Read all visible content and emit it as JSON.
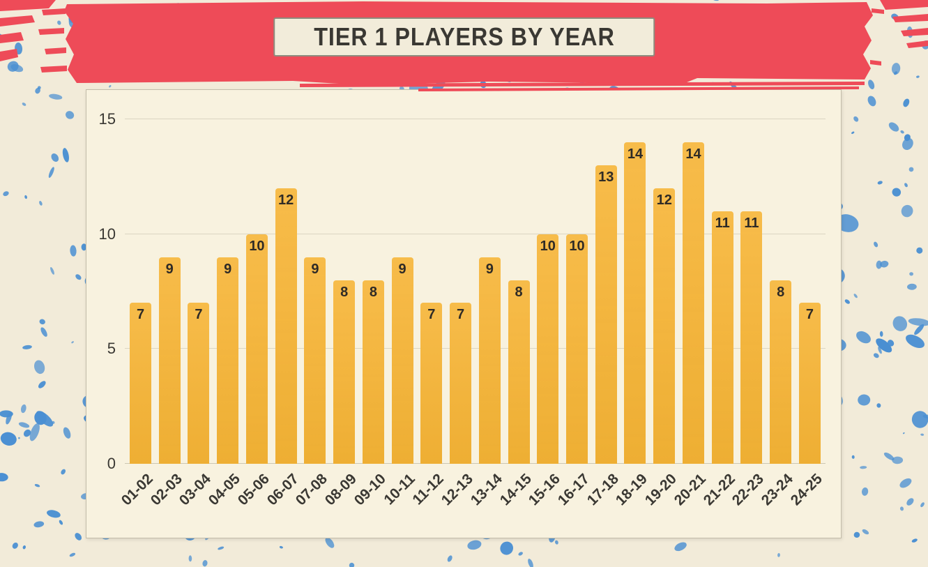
{
  "chart_data": {
    "type": "bar",
    "title": "TIER 1 PLAYERS BY YEAR",
    "categories": [
      "01-02",
      "02-03",
      "03-04",
      "04-05",
      "05-06",
      "06-07",
      "07-08",
      "08-09",
      "09-10",
      "10-11",
      "11-12",
      "12-13",
      "13-14",
      "14-15",
      "15-16",
      "16-17",
      "17-18",
      "18-19",
      "19-20",
      "20-21",
      "21-22",
      "22-23",
      "23-24",
      "24-25"
    ],
    "values": [
      7,
      9,
      7,
      9,
      10,
      12,
      9,
      8,
      8,
      9,
      7,
      7,
      9,
      8,
      10,
      10,
      13,
      14,
      12,
      14,
      11,
      11,
      8,
      7
    ],
    "xlabel": "",
    "ylabel": "",
    "ylim": [
      0,
      15
    ],
    "yticks": [
      0,
      5,
      10,
      15
    ],
    "grid": true,
    "legend": false,
    "bar_color": "#f6b435",
    "value_label_color": "#2f2b26"
  },
  "colors": {
    "background": "#f2ebd9",
    "speckle": "#4a8fd2",
    "banner": "#ee4b58",
    "panel_bg": "#f8f2df",
    "panel_border": "#c3bca9",
    "gridline": "#dbd5c2",
    "axis_text": "#3a3833",
    "title_text": "#3a3833",
    "title_box_bg": "#f2ecda",
    "title_box_border": "#8e8b7e"
  }
}
